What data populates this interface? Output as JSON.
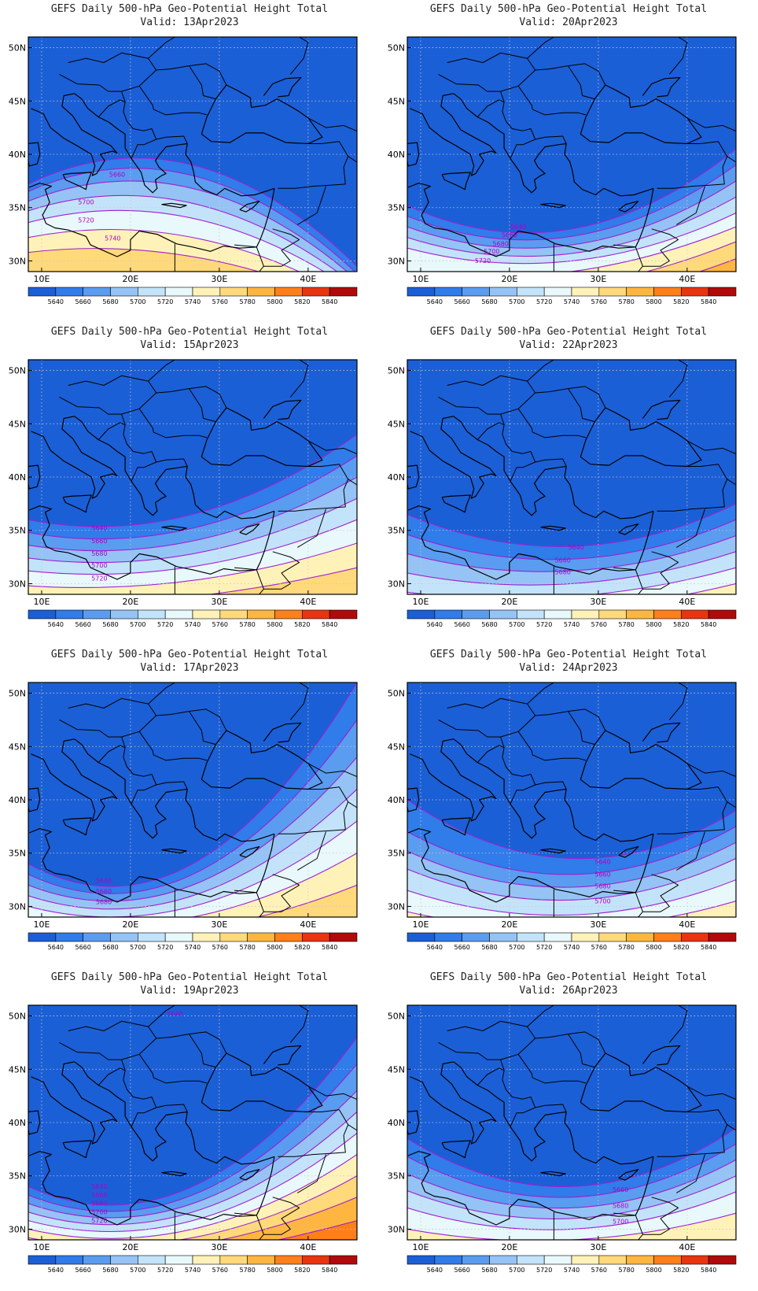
{
  "colors": {
    "ocean_map_bg": "#1f63d6",
    "contour_line": "#a020d0",
    "coast_line": "#000000",
    "grid_line": "#c9c9c9"
  },
  "colorbar": {
    "labels": [
      "5640",
      "5660",
      "5680",
      "5700",
      "5720",
      "5740",
      "5760",
      "5780",
      "5800",
      "5820",
      "5840"
    ],
    "colors": [
      "#1b5fd6",
      "#2f7cea",
      "#5a9cf0",
      "#95c3f5",
      "#c3e3fa",
      "#e8f8fb",
      "#fff2b8",
      "#ffd97a",
      "#ffb640",
      "#ff7f1a",
      "#e8350f",
      "#b10a0a"
    ]
  },
  "axes": {
    "x_ticks": [
      "10E",
      "20E",
      "30E",
      "40E"
    ],
    "y_ticks": [
      "50N",
      "45N",
      "40N",
      "35N",
      "30N"
    ]
  },
  "panels": [
    {
      "title_line1": "GEFS Daily 500-hPa Geo-Potential Height Total",
      "title_line2": "Valid: 13Apr2023",
      "bands": [
        {
          "level": 5640,
          "color": "#2f7cea",
          "y_left": 37.2,
          "y_mid": 39.0,
          "y_right": 29.5
        },
        {
          "level": 5660,
          "color": "#5a9cf0",
          "y_left": 36.5,
          "y_mid": 38.0,
          "y_right": 28.8
        },
        {
          "level": 5680,
          "color": "#95c3f5",
          "y_left": 35.6,
          "y_mid": 36.8,
          "y_right": 28.2
        },
        {
          "level": 5700,
          "color": "#c3e3fa",
          "y_left": 34.7,
          "y_mid": 35.4,
          "y_right": 27.6
        },
        {
          "level": 5720,
          "color": "#e8f8fb",
          "y_left": 33.6,
          "y_mid": 34.0,
          "y_right": 27.0
        },
        {
          "level": 5740,
          "color": "#fff2b8",
          "y_left": 32.2,
          "y_mid": 32.2,
          "y_right": 26.2
        },
        {
          "level": 5760,
          "color": "#ffd97a",
          "y_left": 30.8,
          "y_mid": 30.4,
          "y_right": 25.6
        }
      ],
      "contour_labels": [
        {
          "text": "5660",
          "lon": 18.5,
          "lat": 37.9
        },
        {
          "text": "5700",
          "lon": 15.0,
          "lat": 35.3
        },
        {
          "text": "5720",
          "lon": 15.0,
          "lat": 33.6
        },
        {
          "text": "5740",
          "lon": 18.0,
          "lat": 31.9
        }
      ]
    },
    {
      "title_line1": "GEFS Daily 500-hPa Geo-Potential Height Total",
      "title_line2": "Valid: 20Apr2023",
      "bands": [
        {
          "level": 5640,
          "color": "#2f7cea",
          "y_left": 35.2,
          "y_mid": 33.0,
          "y_right": 40.5
        },
        {
          "level": 5660,
          "color": "#5a9cf0",
          "y_left": 34.2,
          "y_mid": 32.3,
          "y_right": 39.0
        },
        {
          "level": 5680,
          "color": "#95c3f5",
          "y_left": 33.2,
          "y_mid": 31.5,
          "y_right": 37.5
        },
        {
          "level": 5700,
          "color": "#c3e3fa",
          "y_left": 32.2,
          "y_mid": 30.7,
          "y_right": 36.0
        },
        {
          "level": 5720,
          "color": "#e8f8fb",
          "y_left": 31.2,
          "y_mid": 30.0,
          "y_right": 34.5
        },
        {
          "level": 5740,
          "color": "#fff2b8",
          "y_left": 29.0,
          "y_mid": 29.0,
          "y_right": 33.2
        },
        {
          "level": 5760,
          "color": "#ffd97a",
          "y_left": 27.0,
          "y_mid": 27.5,
          "y_right": 31.8
        },
        {
          "level": 5780,
          "color": "#ffb640",
          "y_left": 25.0,
          "y_mid": 26.0,
          "y_right": 30.2
        }
      ],
      "contour_labels": [
        {
          "text": "5640",
          "lon": 21.0,
          "lat": 33.0
        },
        {
          "text": "5660",
          "lon": 20.0,
          "lat": 32.2
        },
        {
          "text": "5680",
          "lon": 19.0,
          "lat": 31.4
        },
        {
          "text": "5700",
          "lon": 18.0,
          "lat": 30.7
        },
        {
          "text": "5720",
          "lon": 17.0,
          "lat": 29.8
        }
      ]
    },
    {
      "title_line1": "GEFS Daily 500-hPa Geo-Potential Height Total",
      "title_line2": "Valid: 15Apr2023",
      "bands": [
        {
          "level": 5640,
          "color": "#2f7cea",
          "y_left": 36.0,
          "y_mid": 36.5,
          "y_right": 44.0
        },
        {
          "level": 5660,
          "color": "#5a9cf0",
          "y_left": 34.8,
          "y_mid": 35.2,
          "y_right": 42.0
        },
        {
          "level": 5680,
          "color": "#95c3f5",
          "y_left": 33.6,
          "y_mid": 34.0,
          "y_right": 40.0
        },
        {
          "level": 5700,
          "color": "#c3e3fa",
          "y_left": 32.4,
          "y_mid": 32.8,
          "y_right": 38.0
        },
        {
          "level": 5720,
          "color": "#e8f8fb",
          "y_left": 31.2,
          "y_mid": 31.6,
          "y_right": 36.0
        },
        {
          "level": 5740,
          "color": "#fff2b8",
          "y_left": 29.8,
          "y_mid": 30.3,
          "y_right": 33.8
        },
        {
          "level": 5760,
          "color": "#ffd97a",
          "y_left": 28.0,
          "y_mid": 28.8,
          "y_right": 31.5
        }
      ],
      "contour_labels": [
        {
          "text": "5640",
          "lon": 16.5,
          "lat": 35.0
        },
        {
          "text": "5660",
          "lon": 16.5,
          "lat": 33.8
        },
        {
          "text": "5680",
          "lon": 16.5,
          "lat": 32.6
        },
        {
          "text": "5700",
          "lon": 16.5,
          "lat": 31.5
        },
        {
          "text": "5720",
          "lon": 16.5,
          "lat": 30.3
        }
      ]
    },
    {
      "title_line1": "GEFS Daily 500-hPa Geo-Potential Height Total",
      "title_line2": "Valid: 22Apr2023",
      "bands": [
        {
          "level": 5640,
          "color": "#2f7cea",
          "y_left": 36.5,
          "y_mid": 33.5,
          "y_right": 37.5
        },
        {
          "level": 5660,
          "color": "#5a9cf0",
          "y_left": 34.6,
          "y_mid": 32.3,
          "y_right": 36.0
        },
        {
          "level": 5680,
          "color": "#95c3f5",
          "y_left": 32.8,
          "y_mid": 31.2,
          "y_right": 34.5
        },
        {
          "level": 5700,
          "color": "#c3e3fa",
          "y_left": 31.0,
          "y_mid": 30.0,
          "y_right": 33.0
        },
        {
          "level": 5720,
          "color": "#e8f8fb",
          "y_left": 29.2,
          "y_mid": 28.8,
          "y_right": 31.5
        },
        {
          "level": 5740,
          "color": "#fff2b8",
          "y_left": 27.5,
          "y_mid": 27.5,
          "y_right": 30.0
        }
      ],
      "contour_labels": [
        {
          "text": "5640",
          "lon": 27.5,
          "lat": 33.2
        },
        {
          "text": "5660",
          "lon": 26.0,
          "lat": 32.0
        },
        {
          "text": "5680",
          "lon": 26.0,
          "lat": 30.9
        }
      ]
    },
    {
      "title_line1": "GEFS Daily 500-hPa Geo-Potential Height Total",
      "title_line2": "Valid: 17Apr2023",
      "bands": [
        {
          "level": 5640,
          "color": "#2f7cea",
          "y_left": 34.0,
          "y_mid": 34.0,
          "y_right": 51.0
        },
        {
          "level": 5660,
          "color": "#5a9cf0",
          "y_left": 33.0,
          "y_mid": 33.0,
          "y_right": 47.5
        },
        {
          "level": 5680,
          "color": "#95c3f5",
          "y_left": 32.0,
          "y_mid": 32.0,
          "y_right": 44.0
        },
        {
          "level": 5700,
          "color": "#c3e3fa",
          "y_left": 31.0,
          "y_mid": 31.0,
          "y_right": 41.0
        },
        {
          "level": 5720,
          "color": "#e8f8fb",
          "y_left": 30.0,
          "y_mid": 30.0,
          "y_right": 38.0
        },
        {
          "level": 5740,
          "color": "#fff2b8",
          "y_left": 29.0,
          "y_mid": 29.0,
          "y_right": 35.0
        },
        {
          "level": 5760,
          "color": "#ffd97a",
          "y_left": 27.5,
          "y_mid": 27.8,
          "y_right": 32.0
        }
      ],
      "contour_labels": [
        {
          "text": "5640",
          "lon": 17.0,
          "lat": 32.2
        },
        {
          "text": "5660",
          "lon": 17.0,
          "lat": 31.2
        },
        {
          "text": "5680",
          "lon": 17.0,
          "lat": 30.2
        }
      ]
    },
    {
      "title_line1": "GEFS Daily 500-hPa Geo-Potential Height Total",
      "title_line2": "Valid: 24Apr2023",
      "bands": [
        {
          "level": 5640,
          "color": "#2f7cea",
          "y_left": 40.0,
          "y_mid": 34.5,
          "y_right": 39.0
        },
        {
          "level": 5660,
          "color": "#5a9cf0",
          "y_left": 37.0,
          "y_mid": 33.0,
          "y_right": 37.5
        },
        {
          "level": 5680,
          "color": "#95c3f5",
          "y_left": 35.2,
          "y_mid": 31.8,
          "y_right": 36.0
        },
        {
          "level": 5700,
          "color": "#c3e3fa",
          "y_left": 33.5,
          "y_mid": 30.6,
          "y_right": 34.5
        },
        {
          "level": 5720,
          "color": "#e8f8fb",
          "y_left": 31.5,
          "y_mid": 29.2,
          "y_right": 32.5
        },
        {
          "level": 5740,
          "color": "#fff2b8",
          "y_left": 29.5,
          "y_mid": 28.0,
          "y_right": 30.5
        }
      ],
      "contour_labels": [
        {
          "text": "5640",
          "lon": 30.5,
          "lat": 34.0
        },
        {
          "text": "5660",
          "lon": 30.5,
          "lat": 32.8
        },
        {
          "text": "5680",
          "lon": 30.5,
          "lat": 31.7
        },
        {
          "text": "5700",
          "lon": 30.5,
          "lat": 30.3
        }
      ]
    },
    {
      "title_line1": "GEFS Daily 500-hPa Geo-Potential Height Total",
      "title_line2": "Valid: 19Apr2023",
      "bands": [
        {
          "level": 5640,
          "color": "#2f7cea",
          "y_left": 34.0,
          "y_mid": 34.0,
          "y_right": 48.0
        },
        {
          "level": 5660,
          "color": "#5a9cf0",
          "y_left": 33.2,
          "y_mid": 33.2,
          "y_right": 45.5
        },
        {
          "level": 5680,
          "color": "#95c3f5",
          "y_left": 32.4,
          "y_mid": 32.4,
          "y_right": 43.0
        },
        {
          "level": 5700,
          "color": "#c3e3fa",
          "y_left": 31.6,
          "y_mid": 31.6,
          "y_right": 41.0
        },
        {
          "level": 5720,
          "color": "#e8f8fb",
          "y_left": 30.8,
          "y_mid": 30.8,
          "y_right": 39.0
        },
        {
          "level": 5740,
          "color": "#fff2b8",
          "y_left": 30.0,
          "y_mid": 30.0,
          "y_right": 37.0
        },
        {
          "level": 5760,
          "color": "#ffd97a",
          "y_left": 29.2,
          "y_mid": 29.2,
          "y_right": 35.0
        },
        {
          "level": 5780,
          "color": "#ffb640",
          "y_left": 28.0,
          "y_mid": 28.5,
          "y_right": 33.0
        },
        {
          "level": 5800,
          "color": "#ff7f1a",
          "y_left": 26.0,
          "y_mid": 27.5,
          "y_right": 30.8
        }
      ],
      "contour_labels": [
        {
          "text": "5640",
          "lon": 16.5,
          "lat": 33.8
        },
        {
          "text": "5660",
          "lon": 16.5,
          "lat": 33.0
        },
        {
          "text": "5680",
          "lon": 16.5,
          "lat": 32.2
        },
        {
          "text": "5700",
          "lon": 16.5,
          "lat": 31.4
        },
        {
          "text": "5720",
          "lon": 16.5,
          "lat": 30.6
        },
        {
          "text": "5640",
          "lon": 25.0,
          "lat": 50.0
        }
      ]
    },
    {
      "title_line1": "GEFS Daily 500-hPa Geo-Potential Height Total",
      "title_line2": "Valid: 26Apr2023",
      "bands": [
        {
          "level": 5640,
          "color": "#2f7cea",
          "y_left": 38.5,
          "y_mid": 34.0,
          "y_right": 39.5
        },
        {
          "level": 5660,
          "color": "#5a9cf0",
          "y_left": 36.8,
          "y_mid": 33.0,
          "y_right": 38.0
        },
        {
          "level": 5680,
          "color": "#95c3f5",
          "y_left": 35.2,
          "y_mid": 32.0,
          "y_right": 36.5
        },
        {
          "level": 5700,
          "color": "#c3e3fa",
          "y_left": 33.6,
          "y_mid": 31.0,
          "y_right": 35.0
        },
        {
          "level": 5720,
          "color": "#e8f8fb",
          "y_left": 32.0,
          "y_mid": 30.0,
          "y_right": 33.5
        },
        {
          "level": 5740,
          "color": "#fff2b8",
          "y_left": 30.0,
          "y_mid": 29.0,
          "y_right": 31.5
        }
      ],
      "contour_labels": [
        {
          "text": "5660",
          "lon": 32.5,
          "lat": 33.5
        },
        {
          "text": "5680",
          "lon": 32.5,
          "lat": 32.0
        },
        {
          "text": "5700",
          "lon": 32.5,
          "lat": 30.5
        }
      ]
    }
  ]
}
